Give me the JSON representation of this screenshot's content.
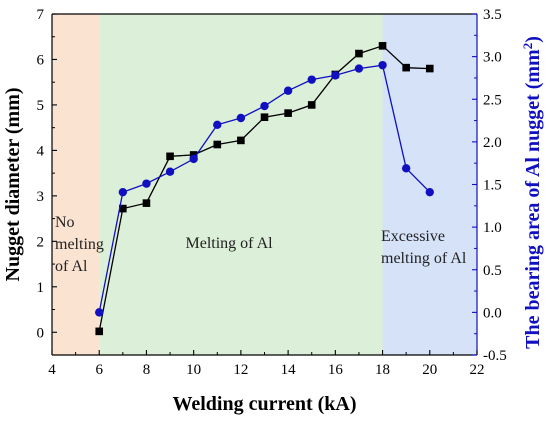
{
  "chart_data": {
    "type": "line",
    "x_axis": {
      "label": "Welding current (kA)",
      "range": [
        4,
        22
      ],
      "ticks": [
        4,
        6,
        8,
        10,
        12,
        14,
        16,
        18,
        20,
        22
      ]
    },
    "y_axis_left": {
      "label": "Nugget diameter (mm)",
      "range": [
        -0.5,
        7
      ],
      "ticks": [
        0,
        1,
        2,
        3,
        4,
        5,
        6,
        7
      ]
    },
    "y_axis_right": {
      "label": "The bearing area of Al nugget  (mm",
      "label_sup": "2",
      "label_close": ")",
      "color": "#1010c0",
      "range": [
        -0.5,
        3.5
      ],
      "ticks": [
        "-0.5",
        "0.0",
        "0.5",
        "1.0",
        "1.5",
        "2.0",
        "2.5",
        "3.0",
        "3.5"
      ]
    },
    "regions": [
      {
        "x_range": [
          4,
          6
        ],
        "color": "#fbe3d2",
        "label_lines": [
          "No",
          "melting",
          "of Al"
        ]
      },
      {
        "x_range": [
          6,
          18
        ],
        "color": "#dcefd9",
        "label_lines": [
          "Melting of Al"
        ]
      },
      {
        "x_range": [
          18,
          22
        ],
        "color": "#d6e2f8",
        "label_lines": [
          "Excessive",
          "melting of Al"
        ]
      }
    ],
    "series": [
      {
        "axis": "left",
        "marker": "square",
        "color": "#000000",
        "x": [
          6,
          7,
          8,
          9,
          10,
          11,
          12,
          13,
          14,
          15,
          16,
          17,
          18,
          19,
          20
        ],
        "y": [
          0.02,
          2.72,
          2.84,
          3.87,
          3.9,
          4.13,
          4.22,
          4.73,
          4.82,
          5.0,
          5.67,
          6.13,
          6.3,
          5.82,
          5.8
        ]
      },
      {
        "axis": "right",
        "marker": "circle",
        "color": "#1010c0",
        "x": [
          6,
          7,
          8,
          9,
          10,
          11,
          12,
          13,
          14,
          15,
          16,
          17,
          18,
          19,
          20
        ],
        "y": [
          0.0,
          1.41,
          1.51,
          1.65,
          1.8,
          2.2,
          2.28,
          2.42,
          2.6,
          2.73,
          2.78,
          2.86,
          2.9,
          1.69,
          1.41
        ]
      }
    ]
  }
}
